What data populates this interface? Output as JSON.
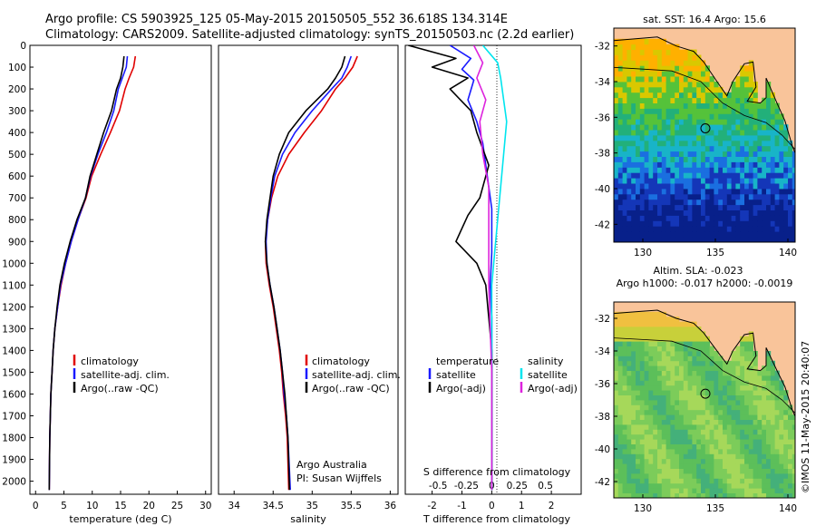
{
  "header": {
    "line1": "Argo profile: CS 5903925_125 05-May-2015 20150505_552 36.618S 134.314E",
    "line2": "Climatology: CARS2009. Satellite-adjusted climatology: synTS_20150503.nc (2.2d earlier)"
  },
  "colors": {
    "climatology": "#e00000",
    "satellite": "#1a1aff",
    "argo": "#000000",
    "satellite_s": "#00e5ee",
    "argo_s": "#dd22dd",
    "land": "#f9c49a"
  },
  "chart_data": [
    {
      "id": "temperature",
      "type": "line",
      "xlabel": "temperature (deg C)",
      "xlim": [
        -1,
        31
      ],
      "ylim": [
        0,
        2060
      ],
      "xticks": [
        0,
        5,
        10,
        15,
        20,
        25,
        30
      ],
      "yticks": [
        0,
        100,
        200,
        300,
        400,
        500,
        600,
        700,
        800,
        900,
        1000,
        1100,
        1200,
        1300,
        1400,
        1500,
        1600,
        1700,
        1800,
        1900,
        2000
      ],
      "legend": [
        "climatology",
        "satellite-adj. clim.",
        "Argo(..raw -QC)"
      ],
      "series": [
        {
          "name": "climatology",
          "color": "#e00000",
          "x": [
            17.6,
            17.3,
            16.5,
            15.8,
            14.8,
            13.2,
            11.5,
            9.9,
            8.9,
            7.5,
            6.3,
            5.3,
            4.5,
            3.9,
            3.4,
            3.1,
            2.9,
            2.7,
            2.6,
            2.5,
            2.4
          ],
          "y": [
            50,
            100,
            150,
            200,
            300,
            400,
            500,
            600,
            700,
            800,
            900,
            1000,
            1100,
            1200,
            1300,
            1400,
            1500,
            1600,
            1700,
            1800,
            2040
          ]
        },
        {
          "name": "satellite",
          "color": "#1a1aff",
          "x": [
            16.2,
            16.0,
            15.3,
            14.6,
            13.8,
            12.5,
            11.0,
            9.7,
            8.8,
            7.5,
            6.3,
            5.3,
            4.4,
            3.9,
            3.4,
            3.1,
            2.9,
            2.7,
            2.6,
            2.5,
            2.4
          ],
          "y": [
            50,
            100,
            150,
            200,
            300,
            400,
            500,
            600,
            700,
            800,
            900,
            1000,
            1100,
            1200,
            1300,
            1400,
            1500,
            1600,
            1700,
            1800,
            2040
          ]
        },
        {
          "name": "argo",
          "color": "#000000",
          "x": [
            15.6,
            15.4,
            15.0,
            14.3,
            13.4,
            12.0,
            10.8,
            9.6,
            8.8,
            7.3,
            6.1,
            5.1,
            4.3,
            3.8,
            3.4,
            3.1,
            2.9,
            2.7,
            2.6,
            2.5,
            2.4
          ],
          "y": [
            50,
            100,
            150,
            200,
            300,
            400,
            500,
            600,
            700,
            800,
            900,
            1000,
            1100,
            1200,
            1300,
            1400,
            1500,
            1600,
            1700,
            1800,
            2040
          ]
        }
      ]
    },
    {
      "id": "salinity",
      "type": "line",
      "xlabel": "salinity",
      "xlim": [
        33.8,
        36.1
      ],
      "ylim": [
        0,
        2060
      ],
      "xticks": [
        34,
        34.5,
        35,
        35.5,
        36
      ],
      "legend": [
        "climatology",
        "satellite-adj. clim.",
        "Argo(..raw -QC)"
      ],
      "annotation": [
        "Argo Australia",
        "PI: Susan Wijffels"
      ],
      "series": [
        {
          "name": "climatology",
          "color": "#e00000",
          "x": [
            35.58,
            35.52,
            35.42,
            35.3,
            35.12,
            34.9,
            34.7,
            34.56,
            34.48,
            34.43,
            34.4,
            34.41,
            34.45,
            34.5,
            34.54,
            34.58,
            34.61,
            34.63,
            34.66,
            34.68,
            34.7
          ],
          "y": [
            50,
            100,
            150,
            200,
            300,
            400,
            500,
            600,
            700,
            800,
            900,
            1000,
            1100,
            1200,
            1300,
            1400,
            1500,
            1600,
            1700,
            1800,
            2040
          ]
        },
        {
          "name": "satellite",
          "color": "#1a1aff",
          "x": [
            35.5,
            35.45,
            35.38,
            35.25,
            35.0,
            34.78,
            34.62,
            34.52,
            34.47,
            34.43,
            34.41,
            34.42,
            34.46,
            34.51,
            34.55,
            34.59,
            34.62,
            34.64,
            34.67,
            34.69,
            34.72
          ],
          "y": [
            50,
            100,
            150,
            200,
            300,
            400,
            500,
            600,
            700,
            800,
            900,
            1000,
            1100,
            1200,
            1300,
            1400,
            1500,
            1600,
            1700,
            1800,
            2040
          ]
        },
        {
          "name": "argo",
          "color": "#000000",
          "x": [
            35.42,
            35.38,
            35.3,
            35.2,
            34.92,
            34.7,
            34.58,
            34.5,
            34.46,
            34.42,
            34.4,
            34.42,
            34.46,
            34.51,
            34.55,
            34.59,
            34.62,
            34.65,
            34.67,
            34.69,
            34.71
          ],
          "y": [
            50,
            100,
            150,
            200,
            300,
            400,
            500,
            600,
            700,
            800,
            900,
            1000,
            1100,
            1200,
            1300,
            1400,
            1500,
            1600,
            1700,
            1800,
            2040
          ]
        }
      ]
    },
    {
      "id": "difference",
      "type": "line",
      "xlabel": "T difference from climatology",
      "x2label": "S difference from climatology",
      "xlim": [
        -2.9,
        3.0
      ],
      "ylim": [
        0,
        2060
      ],
      "xticks": [
        -2,
        -1,
        0,
        1,
        2
      ],
      "x2ticks": [
        {
          "label": "-0.5",
          "t": -1.8
        },
        {
          "label": "-0.25",
          "t": -0.85
        },
        {
          "label": "0",
          "t": 0
        },
        {
          "label": "0.25",
          "t": 0.85
        },
        {
          "label": "0.5",
          "t": 1.8
        }
      ],
      "legend_left_title": "temperature",
      "legend_left": [
        "satellite",
        "Argo(-adj)"
      ],
      "legend_right_title": "salinity",
      "legend_right": [
        "satellite",
        "Argo(-adj)"
      ],
      "series": [
        {
          "name": "T satellite",
          "color": "#1a1aff",
          "x": [
            -1.4,
            -0.7,
            -1.0,
            -0.6,
            -0.8,
            -0.5,
            -0.3,
            -0.2,
            -0.1,
            0.0,
            0.0,
            0.0,
            -0.05,
            0.0,
            0.0,
            0.0,
            0.0,
            0.0,
            0.0,
            0.0
          ],
          "y": [
            0,
            60,
            110,
            160,
            250,
            350,
            450,
            550,
            650,
            750,
            850,
            950,
            1100,
            1250,
            1400,
            1550,
            1700,
            1850,
            1950,
            2040
          ]
        },
        {
          "name": "T argo",
          "color": "#000000",
          "x": [
            -2.8,
            -1.2,
            -2.0,
            -0.8,
            -1.4,
            -0.7,
            -0.5,
            -0.1,
            -0.4,
            -0.8,
            -1.2,
            -0.5,
            -0.2,
            -0.1,
            0.0,
            0.0,
            0.0,
            0.0,
            0.0,
            0.0
          ],
          "y": [
            0,
            60,
            100,
            150,
            200,
            300,
            400,
            550,
            700,
            780,
            900,
            1000,
            1100,
            1250,
            1400,
            1550,
            1700,
            1850,
            1950,
            2040
          ]
        },
        {
          "name": "S satellite",
          "color": "#00e5ee",
          "x": [
            -0.3,
            0.2,
            0.3,
            0.4,
            0.5,
            0.4,
            0.3,
            0.2,
            0.1,
            0.0,
            0.0,
            0.0,
            0.0,
            0.0,
            0.0
          ],
          "y": [
            0,
            80,
            150,
            250,
            350,
            500,
            650,
            800,
            950,
            1100,
            1300,
            1500,
            1700,
            1900,
            2040
          ]
        },
        {
          "name": "S argo",
          "color": "#dd22dd",
          "x": [
            -0.6,
            -0.3,
            -0.5,
            -0.2,
            -0.4,
            -0.3,
            -0.1,
            -0.1,
            -0.1,
            -0.1,
            -0.05,
            0.0,
            0.0,
            0.0,
            0.0
          ],
          "y": [
            0,
            80,
            150,
            250,
            350,
            500,
            650,
            800,
            950,
            1100,
            1300,
            1500,
            1700,
            1900,
            2040
          ]
        }
      ]
    }
  ],
  "maps": [
    {
      "id": "sst",
      "title": "sat. SST: 16.4  Argo: 15.6",
      "xlim": [
        128,
        140.5
      ],
      "ylim": [
        -43,
        -31
      ],
      "xticks": [
        "130",
        "135",
        "140"
      ],
      "yticks": [
        "-32",
        "-34",
        "-36",
        "-38",
        "-40",
        "-42"
      ],
      "argo_lon": 134.314,
      "argo_lat": -36.618
    },
    {
      "id": "sla",
      "title": "Altim. SLA: -0.023",
      "subtitle": "Argo h1000: -0.017  h2000: -0.0019",
      "xlim": [
        128,
        140.5
      ],
      "ylim": [
        -43,
        -31
      ],
      "xticks": [
        "130",
        "135",
        "140"
      ],
      "yticks": [
        "-32",
        "-34",
        "-36",
        "-38",
        "-40",
        "-42"
      ],
      "argo_lon": 134.314,
      "argo_lat": -36.618
    }
  ],
  "footer_vertical": "©IMOS 11-May-2015 20:40:07"
}
